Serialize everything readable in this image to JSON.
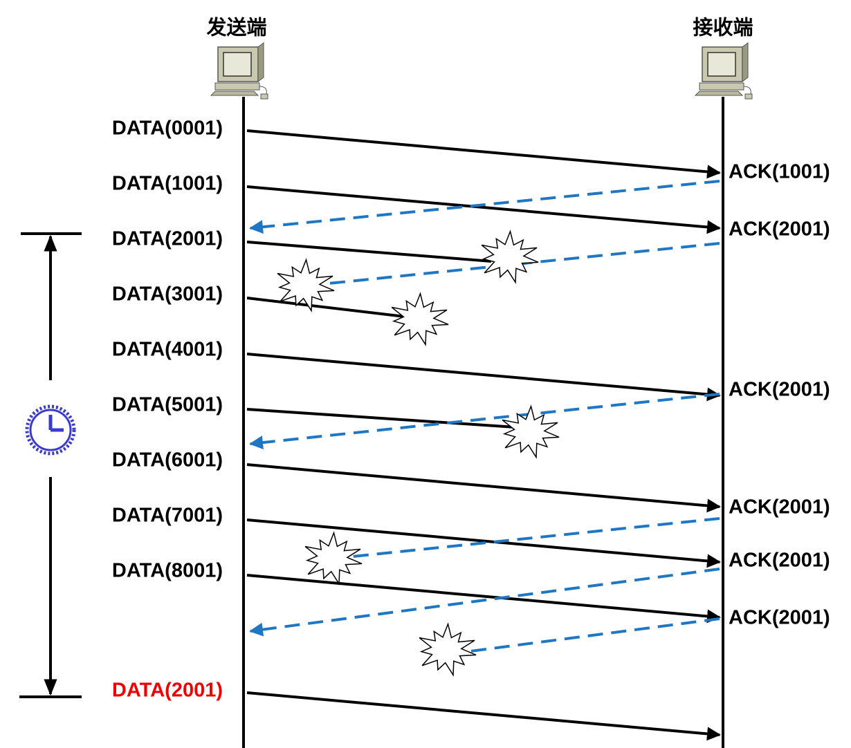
{
  "sender": {
    "label": "发送端"
  },
  "receiver": {
    "label": "接收端"
  },
  "data_packets": [
    "DATA(0001)",
    "DATA(1001)",
    "DATA(2001)",
    "DATA(3001)",
    "DATA(4001)",
    "DATA(5001)",
    "DATA(6001)",
    "DATA(7001)",
    "DATA(8001)",
    "DATA(2001)"
  ],
  "acks": [
    "ACK(1001)",
    "ACK(2001)",
    "ACK(2001)",
    "ACK(2001)",
    "ACK(2001)",
    "ACK(2001)"
  ]
}
